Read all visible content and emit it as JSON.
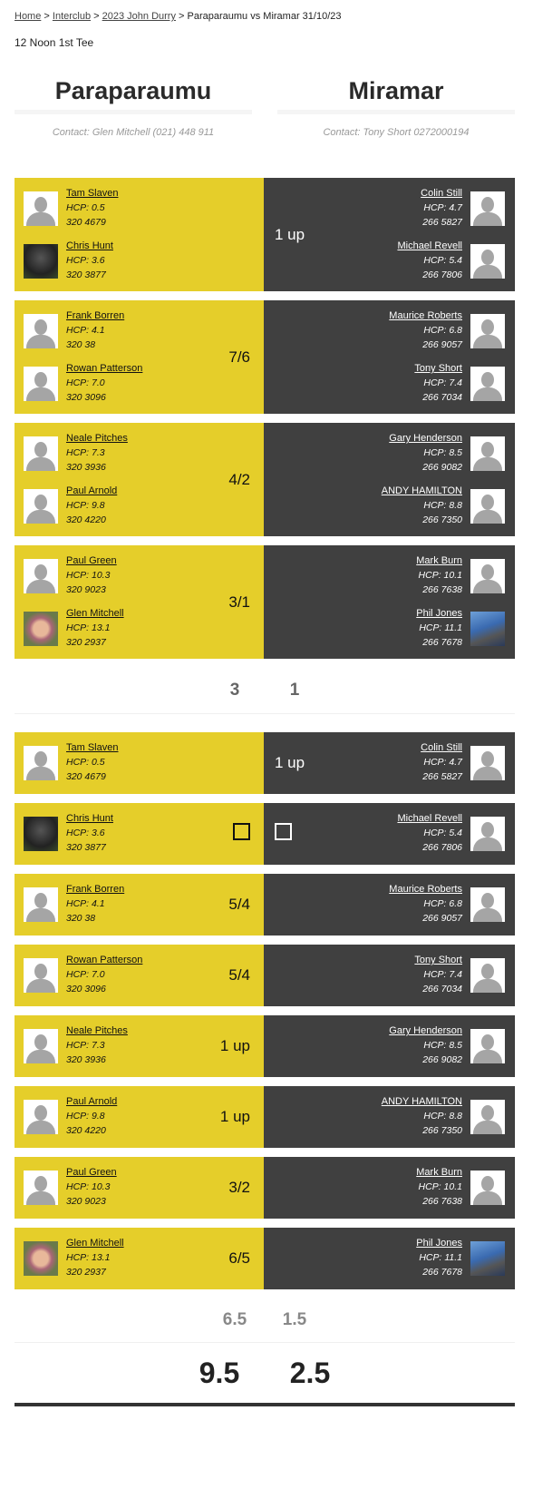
{
  "breadcrumb": {
    "links": [
      "Home",
      "Interclub",
      "2023 John Durry"
    ],
    "current": "Paraparaumu vs Miramar 31/10/23"
  },
  "tee_time": "12 Noon 1st Tee",
  "teams": [
    {
      "name": "Paraparaumu",
      "contact": "Contact: Glen Mitchell (021) 448 911"
    },
    {
      "name": "Miramar",
      "contact": "Contact: Tony Short 0272000194"
    }
  ],
  "colors": {
    "home": "#e5ce2a",
    "away": "#404040"
  },
  "foursomes": [
    {
      "home": [
        {
          "name": "Tam Slaven",
          "hcp": "HCP: 0.5",
          "phone": "320 4679",
          "avatar": "placeholder"
        },
        {
          "name": "Chris Hunt",
          "hcp": "HCP: 3.6",
          "phone": "320 3877",
          "avatar": "photo-dark"
        }
      ],
      "away": [
        {
          "name": "Colin Still",
          "hcp": "HCP: 4.7",
          "phone": "266 5827",
          "avatar": "placeholder"
        },
        {
          "name": "Michael Revell",
          "hcp": "HCP: 5.4",
          "phone": "266 7806",
          "avatar": "placeholder"
        }
      ],
      "winner": "away",
      "result": "1 up"
    },
    {
      "home": [
        {
          "name": "Frank Borren",
          "hcp": "HCP: 4.1",
          "phone": "320 38",
          "avatar": "placeholder"
        },
        {
          "name": "Rowan Patterson",
          "hcp": "HCP: 7.0",
          "phone": "320 3096",
          "avatar": "placeholder"
        }
      ],
      "away": [
        {
          "name": "Maurice Roberts",
          "hcp": "HCP: 6.8",
          "phone": "266 9057",
          "avatar": "placeholder"
        },
        {
          "name": "Tony Short",
          "hcp": "HCP: 7.4",
          "phone": "266 7034",
          "avatar": "placeholder"
        }
      ],
      "winner": "home",
      "result": "7/6"
    },
    {
      "home": [
        {
          "name": "Neale Pitches",
          "hcp": "HCP: 7.3",
          "phone": "320 3936",
          "avatar": "placeholder"
        },
        {
          "name": "Paul Arnold",
          "hcp": "HCP: 9.8",
          "phone": "320 4220",
          "avatar": "placeholder"
        }
      ],
      "away": [
        {
          "name": "Gary Henderson",
          "hcp": "HCP: 8.5",
          "phone": "266 9082",
          "avatar": "placeholder"
        },
        {
          "name": "ANDY HAMILTON",
          "hcp": "HCP: 8.8",
          "phone": "266 7350",
          "avatar": "placeholder"
        }
      ],
      "winner": "home",
      "result": "4/2"
    },
    {
      "home": [
        {
          "name": "Paul Green",
          "hcp": "HCP: 10.3",
          "phone": "320 9023",
          "avatar": "placeholder"
        },
        {
          "name": "Glen Mitchell",
          "hcp": "HCP: 13.1",
          "phone": "320 2937",
          "avatar": "photo-face"
        }
      ],
      "away": [
        {
          "name": "Mark Burn",
          "hcp": "HCP: 10.1",
          "phone": "266 7638",
          "avatar": "placeholder"
        },
        {
          "name": "Phil Jones",
          "hcp": "HCP: 11.1",
          "phone": "266 7678",
          "avatar": "photo-mountain"
        }
      ],
      "winner": "home",
      "result": "3/1"
    }
  ],
  "foursomes_score": [
    "3",
    "1"
  ],
  "singles": [
    {
      "home": [
        {
          "name": "Tam Slaven",
          "hcp": "HCP: 0.5",
          "phone": "320 4679",
          "avatar": "placeholder"
        }
      ],
      "away": [
        {
          "name": "Colin Still",
          "hcp": "HCP: 4.7",
          "phone": "266 5827",
          "avatar": "placeholder"
        }
      ],
      "winner": "away",
      "result": "1 up"
    },
    {
      "home": [
        {
          "name": "Chris Hunt",
          "hcp": "HCP: 3.6",
          "phone": "320 3877",
          "avatar": "photo-dark"
        }
      ],
      "away": [
        {
          "name": "Michael Revell",
          "hcp": "HCP: 5.4",
          "phone": "266 7806",
          "avatar": "placeholder"
        }
      ],
      "winner": "halved",
      "result": ""
    },
    {
      "home": [
        {
          "name": "Frank Borren",
          "hcp": "HCP: 4.1",
          "phone": "320 38",
          "avatar": "placeholder"
        }
      ],
      "away": [
        {
          "name": "Maurice Roberts",
          "hcp": "HCP: 6.8",
          "phone": "266 9057",
          "avatar": "placeholder"
        }
      ],
      "winner": "home",
      "result": "5/4"
    },
    {
      "home": [
        {
          "name": "Rowan Patterson",
          "hcp": "HCP: 7.0",
          "phone": "320 3096",
          "avatar": "placeholder"
        }
      ],
      "away": [
        {
          "name": "Tony Short",
          "hcp": "HCP: 7.4",
          "phone": "266 7034",
          "avatar": "placeholder"
        }
      ],
      "winner": "home",
      "result": "5/4"
    },
    {
      "home": [
        {
          "name": "Neale Pitches",
          "hcp": "HCP: 7.3",
          "phone": "320 3936",
          "avatar": "placeholder"
        }
      ],
      "away": [
        {
          "name": "Gary Henderson",
          "hcp": "HCP: 8.5",
          "phone": "266 9082",
          "avatar": "placeholder"
        }
      ],
      "winner": "home",
      "result": "1 up"
    },
    {
      "home": [
        {
          "name": "Paul Arnold",
          "hcp": "HCP: 9.8",
          "phone": "320 4220",
          "avatar": "placeholder"
        }
      ],
      "away": [
        {
          "name": "ANDY HAMILTON",
          "hcp": "HCP: 8.8",
          "phone": "266 7350",
          "avatar": "placeholder"
        }
      ],
      "winner": "home",
      "result": "1 up"
    },
    {
      "home": [
        {
          "name": "Paul Green",
          "hcp": "HCP: 10.3",
          "phone": "320 9023",
          "avatar": "placeholder"
        }
      ],
      "away": [
        {
          "name": "Mark Burn",
          "hcp": "HCP: 10.1",
          "phone": "266 7638",
          "avatar": "placeholder"
        }
      ],
      "winner": "home",
      "result": "3/2"
    },
    {
      "home": [
        {
          "name": "Glen Mitchell",
          "hcp": "HCP: 13.1",
          "phone": "320 2937",
          "avatar": "photo-face"
        }
      ],
      "away": [
        {
          "name": "Phil Jones",
          "hcp": "HCP: 11.1",
          "phone": "266 7678",
          "avatar": "photo-mountain"
        }
      ],
      "winner": "home",
      "result": "6/5"
    }
  ],
  "singles_score": [
    "6.5",
    "1.5"
  ],
  "total_score": [
    "9.5",
    "2.5"
  ]
}
